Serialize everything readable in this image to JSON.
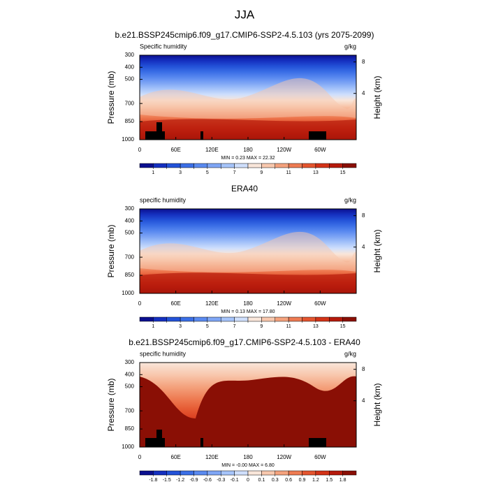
{
  "suptitle": "JJA",
  "chart_data": [
    {
      "type": "contour",
      "title": "b.e21.BSSP245cmip6.f09_g17.CMIP6-SSP2-4.5.103 (yrs 2075-2099)",
      "left_label": "Specific humidity",
      "right_label": "g/kg",
      "ylabel": "Pressure (mb)",
      "y2label": "Height (km)",
      "annotation": "MIN =  0.23  MAX = 22.32",
      "xlim": [
        0,
        360
      ],
      "xticks": [
        0,
        {
          "value": 60,
          "label": "60E"
        },
        {
          "value": 120,
          "label": "120E"
        },
        180,
        {
          "value": 240,
          "label": "120W"
        },
        {
          "value": 300,
          "label": "60W"
        }
      ],
      "ylim": [
        1000,
        300
      ],
      "yticks": [
        300,
        400,
        500,
        700,
        850,
        1000
      ],
      "y2ticks": [
        8,
        4
      ],
      "colorbar": {
        "levels": [
          1,
          2,
          3,
          4,
          5,
          6,
          7,
          8,
          9,
          10,
          11,
          12,
          13,
          14,
          15
        ],
        "label_stride": 2,
        "colors": [
          "#0b0f8f",
          "#1530c0",
          "#2352d8",
          "#3b6fe6",
          "#5a8af0",
          "#7fa6f5",
          "#a6c4fa",
          "#cfdffc",
          "#f9e6da",
          "#f8c8ae",
          "#f4a27d",
          "#ee7b52",
          "#e4552f",
          "#d33318",
          "#b51a0c",
          "#8a0f05"
        ]
      }
    },
    {
      "type": "contour",
      "title": "ERA40",
      "left_label": "specific humidity",
      "right_label": "g/kg",
      "ylabel": "Pressure (mb)",
      "y2label": "Height (km)",
      "annotation": "MIN =  0.13  MAX = 17.80",
      "xlim": [
        0,
        360
      ],
      "xticks": [
        0,
        {
          "value": 60,
          "label": "60E"
        },
        {
          "value": 120,
          "label": "120E"
        },
        180,
        {
          "value": 240,
          "label": "120W"
        },
        {
          "value": 300,
          "label": "60W"
        }
      ],
      "ylim": [
        1000,
        300
      ],
      "yticks": [
        300,
        400,
        500,
        700,
        850,
        1000
      ],
      "y2ticks": [
        8,
        4
      ],
      "colorbar": {
        "levels": [
          1,
          2,
          3,
          4,
          5,
          6,
          7,
          8,
          9,
          10,
          11,
          12,
          13,
          14,
          15
        ],
        "label_stride": 2,
        "colors": [
          "#0b0f8f",
          "#1530c0",
          "#2352d8",
          "#3b6fe6",
          "#5a8af0",
          "#7fa6f5",
          "#a6c4fa",
          "#cfdffc",
          "#f9e6da",
          "#f8c8ae",
          "#f4a27d",
          "#ee7b52",
          "#e4552f",
          "#d33318",
          "#b51a0c",
          "#8a0f05"
        ]
      }
    },
    {
      "type": "contour",
      "title": "b.e21.BSSP245cmip6.f09_g17.CMIP6-SSP2-4.5.103 - ERA40",
      "left_label": "specific humidity",
      "right_label": "g/kg",
      "ylabel": "Pressure (mb)",
      "y2label": "Height (km)",
      "annotation": "MIN = -0.00  MAX =  6.80",
      "xlim": [
        0,
        360
      ],
      "xticks": [
        0,
        {
          "value": 60,
          "label": "60E"
        },
        {
          "value": 120,
          "label": "120E"
        },
        180,
        {
          "value": 240,
          "label": "120W"
        },
        {
          "value": 300,
          "label": "60W"
        }
      ],
      "ylim": [
        1000,
        300
      ],
      "yticks": [
        300,
        400,
        500,
        700,
        850,
        1000
      ],
      "y2ticks": [
        8,
        4
      ],
      "colorbar": {
        "levels": [
          -1.8,
          -1.5,
          -1.2,
          -0.9,
          -0.6,
          -0.3,
          -0.1,
          0,
          0.1,
          0.3,
          0.6,
          0.9,
          1.2,
          1.5,
          1.8
        ],
        "label_stride": 1,
        "colors": [
          "#0b0f8f",
          "#1530c0",
          "#2352d8",
          "#3b6fe6",
          "#5a8af0",
          "#7fa6f5",
          "#a6c4fa",
          "#cfdffc",
          "#f9e6da",
          "#f8c8ae",
          "#f4a27d",
          "#ee7b52",
          "#e4552f",
          "#d33318",
          "#b51a0c",
          "#8a0f05"
        ]
      }
    }
  ]
}
